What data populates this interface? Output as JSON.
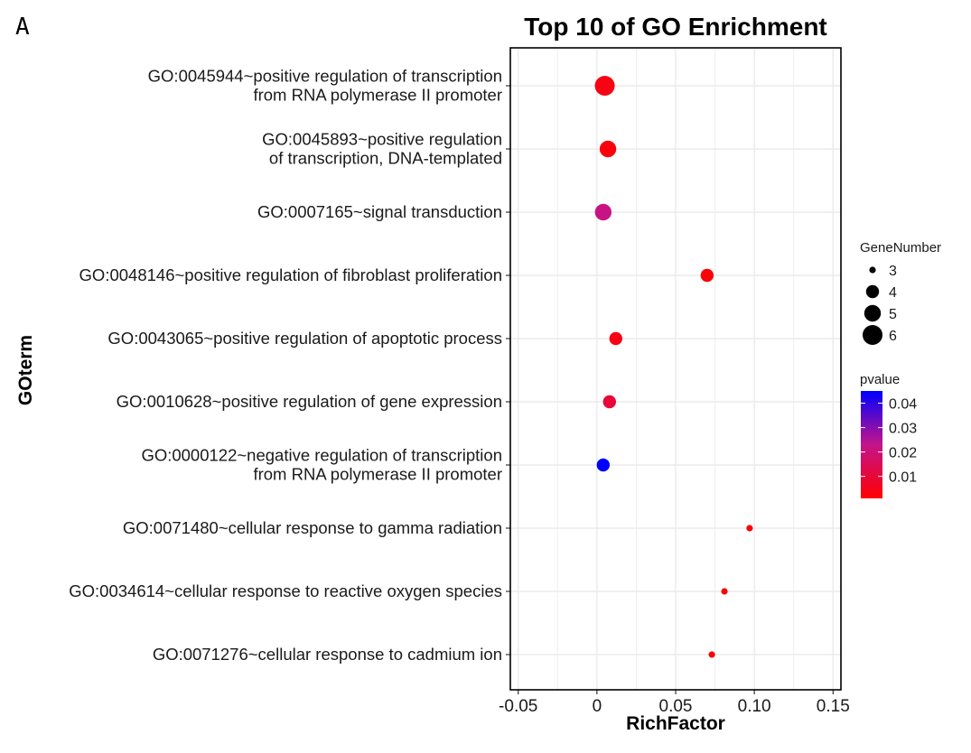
{
  "panel_label": "A",
  "colors": {
    "low_pvalue": "#ff0000",
    "high_pvalue": "#0000ff",
    "gridline": "#ebebeb"
  },
  "chart_data": {
    "type": "scatter",
    "title": "Top 10 of GO Enrichment",
    "xlabel": "RichFactor",
    "ylabel": "GOterm",
    "xlim": [
      -0.055,
      0.155
    ],
    "x_ticks": [
      -0.05,
      0,
      0.05,
      0.1,
      0.15
    ],
    "x_tick_labels": [
      "-0.05",
      "0",
      "0.05",
      "0.10",
      "0.15"
    ],
    "grid": true,
    "legend_position": "right",
    "size_legend": {
      "title": "GeneNumber",
      "values": [
        3,
        4,
        5,
        6
      ],
      "labels": [
        "3",
        "4",
        "5",
        "6"
      ]
    },
    "color_legend": {
      "title": "pvalue",
      "range": [
        0.001,
        0.045
      ],
      "ticks": [
        0.01,
        0.02,
        0.03,
        0.04
      ],
      "tick_labels": [
        "0.01",
        "0.02",
        "0.03",
        "0.04"
      ]
    },
    "terms": [
      {
        "label": [
          "GO:0045944~positive regulation of transcription",
          "from RNA polymerase II promoter"
        ],
        "rich_factor": 0.005,
        "gene_number": 6,
        "pvalue": 0.004
      },
      {
        "label": [
          "GO:0045893~positive regulation",
          "of transcription, DNA-templated"
        ],
        "rich_factor": 0.007,
        "gene_number": 5,
        "pvalue": 0.003
      },
      {
        "label": [
          "GO:0007165~signal transduction"
        ],
        "rich_factor": 0.004,
        "gene_number": 5,
        "pvalue": 0.022
      },
      {
        "label": [
          "GO:0048146~positive regulation of fibroblast proliferation"
        ],
        "rich_factor": 0.07,
        "gene_number": 4,
        "pvalue": 0.002
      },
      {
        "label": [
          "GO:0043065~positive regulation of apoptotic process"
        ],
        "rich_factor": 0.012,
        "gene_number": 4,
        "pvalue": 0.004
      },
      {
        "label": [
          "GO:0010628~positive regulation of gene expression"
        ],
        "rich_factor": 0.008,
        "gene_number": 4,
        "pvalue": 0.01
      },
      {
        "label": [
          "GO:0000122~negative regulation of transcription",
          "from RNA polymerase II promoter"
        ],
        "rich_factor": 0.004,
        "gene_number": 4,
        "pvalue": 0.045
      },
      {
        "label": [
          "GO:0071480~cellular response to gamma radiation"
        ],
        "rich_factor": 0.097,
        "gene_number": 3,
        "pvalue": 0.002
      },
      {
        "label": [
          "GO:0034614~cellular response to reactive oxygen species"
        ],
        "rich_factor": 0.081,
        "gene_number": 3,
        "pvalue": 0.002
      },
      {
        "label": [
          "GO:0071276~cellular response to cadmium ion"
        ],
        "rich_factor": 0.073,
        "gene_number": 3,
        "pvalue": 0.002
      }
    ]
  }
}
